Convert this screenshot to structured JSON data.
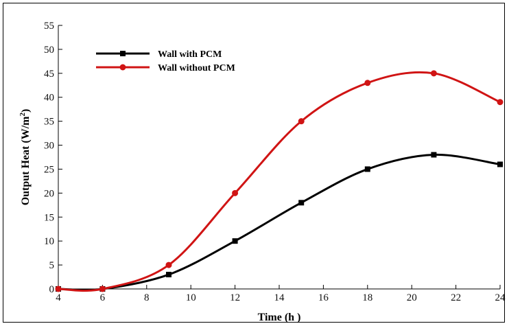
{
  "chart_data": {
    "type": "line",
    "xlabel": "Time (h )",
    "ylabel": "Output Heat (W/m",
    "ylabel_superscript": "2",
    "ylabel_suffix": ")",
    "xlim": [
      4,
      24
    ],
    "ylim": [
      0,
      55
    ],
    "xticks": [
      4,
      6,
      8,
      10,
      12,
      14,
      16,
      18,
      20,
      22,
      24
    ],
    "yticks": [
      0,
      5,
      10,
      15,
      20,
      25,
      30,
      35,
      40,
      45,
      50,
      55
    ],
    "grid": false,
    "legend_position": "top-left",
    "series": [
      {
        "name": "Wall with PCM",
        "color": "#000000",
        "marker": "square",
        "x": [
          4,
          6,
          9,
          12,
          15,
          18,
          21,
          24
        ],
        "y": [
          0,
          0,
          3,
          10,
          18,
          25,
          28,
          26
        ]
      },
      {
        "name": "Wall without PCM",
        "color": "#d01414",
        "marker": "circle",
        "x": [
          4,
          6,
          9,
          12,
          15,
          18,
          21,
          24
        ],
        "y": [
          0,
          0,
          5,
          20,
          35,
          43,
          45,
          39
        ]
      }
    ]
  }
}
